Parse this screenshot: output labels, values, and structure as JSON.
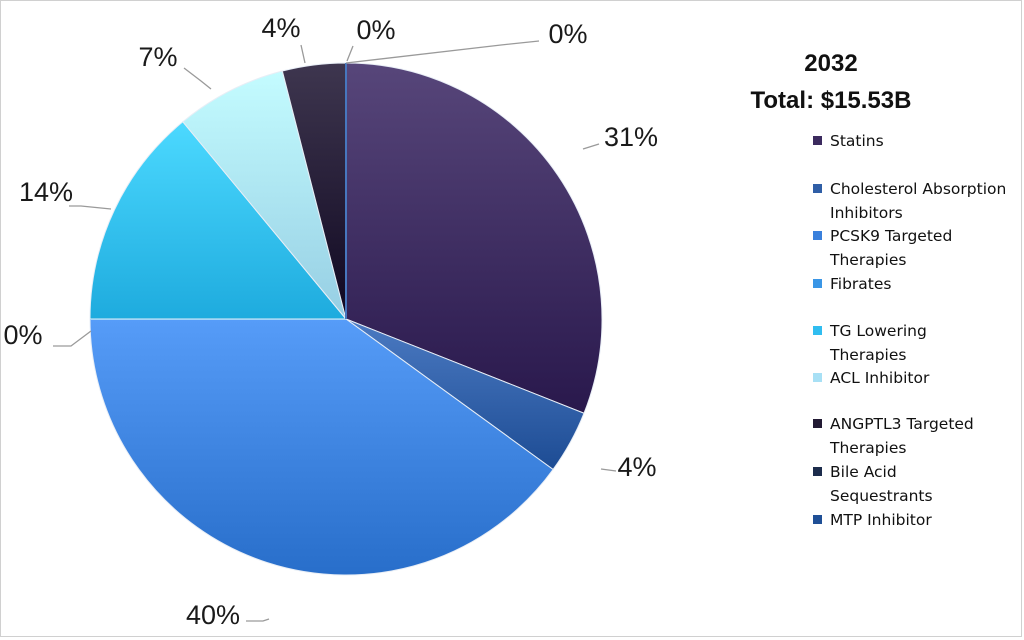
{
  "chart_data": {
    "type": "pie",
    "title": "2032",
    "subtitle": "Total: $15.53B",
    "legend_position": "right",
    "categories": [
      "Statins",
      "Cholesterol Absorption Inhibitors",
      "PCSK9 Targeted Therapies",
      "Fibrates",
      "TG Lowering Therapies",
      "ACL Inhibitor",
      "ANGPTL3 Targeted Therapies",
      "Bile Acid Sequestrants",
      "MTP Inhibitor"
    ],
    "values": [
      31,
      4,
      40,
      0,
      14,
      7,
      4,
      0,
      0
    ],
    "value_labels": [
      "31%",
      "4%",
      "40%",
      "0%",
      "14%",
      "7%",
      "4%",
      "0%",
      "0%"
    ],
    "colors": [
      "#3b2a5e",
      "#2f5ea6",
      "#3a80dc",
      "#3a96e6",
      "#30bdf0",
      "#a8e0f5",
      "#221a33",
      "#1c2c4c",
      "#1f4f96"
    ]
  }
}
